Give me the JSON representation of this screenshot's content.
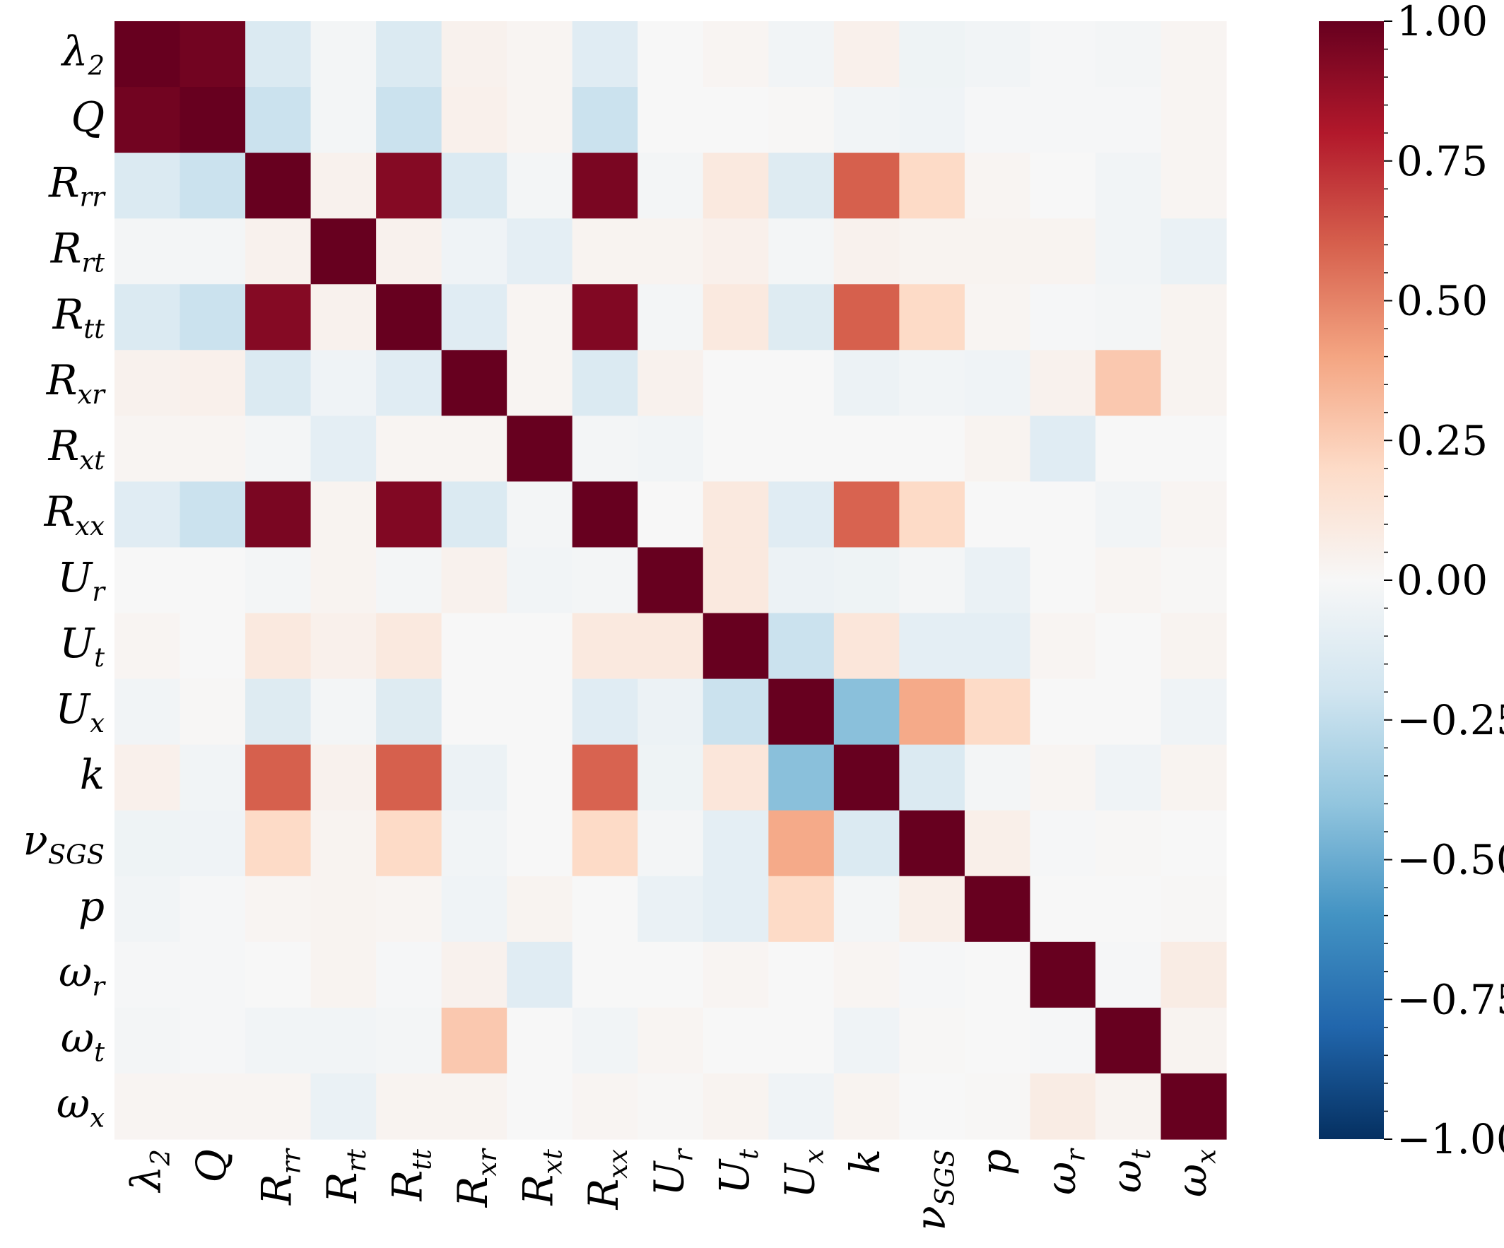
{
  "chart_data": {
    "type": "heatmap",
    "title": "",
    "xlabel": "",
    "ylabel": "",
    "variables": [
      {
        "base": "λ",
        "sub": "2"
      },
      {
        "base": "Q",
        "sub": ""
      },
      {
        "base": "R",
        "sub": "rr"
      },
      {
        "base": "R",
        "sub": "rt"
      },
      {
        "base": "R",
        "sub": "tt"
      },
      {
        "base": "R",
        "sub": "xr"
      },
      {
        "base": "R",
        "sub": "xt"
      },
      {
        "base": "R",
        "sub": "xx"
      },
      {
        "base": "U",
        "sub": "r"
      },
      {
        "base": "U",
        "sub": "t"
      },
      {
        "base": "U",
        "sub": "x"
      },
      {
        "base": "k",
        "sub": ""
      },
      {
        "base": "ν",
        "sub": "SGS"
      },
      {
        "base": "p",
        "sub": ""
      },
      {
        "base": "ω",
        "sub": "r"
      },
      {
        "base": "ω",
        "sub": "t"
      },
      {
        "base": "ω",
        "sub": "x"
      }
    ],
    "matrix": [
      [
        1.0,
        0.97,
        -0.15,
        -0.02,
        -0.15,
        0.04,
        0.02,
        -0.12,
        0.0,
        0.02,
        -0.03,
        0.05,
        -0.05,
        -0.03,
        -0.01,
        -0.02,
        0.02
      ],
      [
        0.97,
        1.0,
        -0.22,
        -0.02,
        -0.22,
        0.05,
        0.02,
        -0.22,
        0.0,
        0.0,
        0.01,
        -0.03,
        -0.04,
        -0.01,
        -0.01,
        -0.01,
        0.02
      ],
      [
        -0.15,
        -0.22,
        1.0,
        0.04,
        0.92,
        -0.15,
        -0.02,
        0.95,
        -0.02,
        0.1,
        -0.13,
        0.6,
        0.2,
        0.02,
        0.0,
        -0.03,
        0.02
      ],
      [
        -0.02,
        -0.02,
        0.04,
        1.0,
        0.04,
        -0.04,
        -0.1,
        0.03,
        0.03,
        0.05,
        -0.02,
        0.04,
        0.03,
        0.03,
        0.03,
        -0.03,
        -0.07
      ],
      [
        -0.15,
        -0.22,
        0.92,
        0.04,
        1.0,
        -0.12,
        0.02,
        0.93,
        -0.02,
        0.1,
        -0.13,
        0.6,
        0.2,
        0.02,
        -0.01,
        -0.02,
        0.03
      ],
      [
        0.04,
        0.05,
        -0.15,
        -0.04,
        -0.12,
        1.0,
        0.02,
        -0.15,
        0.04,
        0.0,
        0.0,
        -0.06,
        -0.03,
        -0.04,
        0.04,
        0.27,
        0.03
      ],
      [
        0.02,
        0.02,
        -0.02,
        -0.1,
        0.02,
        0.02,
        1.0,
        -0.02,
        -0.03,
        0.0,
        0.0,
        0.0,
        0.0,
        0.03,
        -0.12,
        0.0,
        0.0
      ],
      [
        -0.12,
        -0.22,
        0.95,
        0.03,
        0.93,
        -0.15,
        -0.02,
        1.0,
        0.0,
        0.1,
        -0.12,
        0.59,
        0.2,
        0.0,
        0.0,
        -0.03,
        0.02
      ],
      [
        0.0,
        0.0,
        -0.02,
        0.03,
        -0.02,
        0.04,
        -0.03,
        -0.02,
        1.0,
        0.1,
        -0.06,
        -0.05,
        -0.02,
        -0.07,
        0.0,
        0.02,
        0.01
      ],
      [
        0.02,
        0.0,
        0.1,
        0.05,
        0.1,
        0.0,
        0.0,
        0.1,
        0.1,
        1.0,
        -0.22,
        0.12,
        -0.1,
        -0.1,
        0.02,
        0.0,
        0.03
      ],
      [
        -0.03,
        0.01,
        -0.13,
        -0.02,
        -0.13,
        0.0,
        0.0,
        -0.12,
        -0.06,
        -0.22,
        1.0,
        -0.42,
        0.38,
        0.2,
        0.0,
        0.0,
        -0.04
      ],
      [
        0.05,
        -0.03,
        0.6,
        0.04,
        0.6,
        -0.06,
        0.0,
        0.59,
        -0.05,
        0.12,
        -0.42,
        1.0,
        -0.15,
        -0.02,
        0.02,
        -0.04,
        0.03
      ],
      [
        -0.05,
        -0.04,
        0.2,
        0.03,
        0.2,
        -0.03,
        0.0,
        0.2,
        -0.02,
        -0.1,
        0.38,
        -0.15,
        1.0,
        0.06,
        -0.01,
        0.01,
        0.0
      ],
      [
        -0.03,
        -0.01,
        0.02,
        0.03,
        0.02,
        -0.04,
        0.03,
        0.0,
        -0.07,
        -0.1,
        0.2,
        -0.02,
        0.06,
        1.0,
        0.0,
        0.0,
        0.01
      ],
      [
        -0.01,
        -0.01,
        0.0,
        0.03,
        -0.01,
        0.04,
        -0.12,
        0.0,
        0.0,
        0.02,
        0.0,
        0.02,
        -0.01,
        0.0,
        1.0,
        -0.01,
        0.08
      ],
      [
        -0.02,
        -0.01,
        -0.03,
        -0.03,
        -0.02,
        0.27,
        0.0,
        -0.03,
        0.02,
        0.0,
        0.0,
        -0.04,
        0.01,
        0.0,
        -0.01,
        1.0,
        0.03
      ],
      [
        0.02,
        0.02,
        0.02,
        -0.07,
        0.03,
        0.03,
        0.0,
        0.02,
        0.01,
        0.03,
        -0.04,
        0.03,
        0.0,
        0.01,
        0.08,
        0.03,
        1.0
      ]
    ],
    "colorbar": {
      "colormap": "RdBu_r",
      "min": -1.0,
      "max": 1.0,
      "tick_labels": [
        "1.00",
        "0.75",
        "0.50",
        "0.25",
        "0.00",
        "−0.25",
        "−0.50",
        "−0.75",
        "−1.00"
      ],
      "tick_values": [
        1.0,
        0.75,
        0.5,
        0.25,
        0.0,
        -0.25,
        -0.5,
        -0.75,
        -1.0
      ]
    },
    "colormap_stops": [
      {
        "v": -1.0,
        "color": "#053061"
      },
      {
        "v": -0.8,
        "color": "#2166ac"
      },
      {
        "v": -0.6,
        "color": "#4393c3"
      },
      {
        "v": -0.4,
        "color": "#92c5de"
      },
      {
        "v": -0.2,
        "color": "#d1e5f0"
      },
      {
        "v": 0.0,
        "color": "#f7f7f7"
      },
      {
        "v": 0.2,
        "color": "#fddbc7"
      },
      {
        "v": 0.4,
        "color": "#f4a582"
      },
      {
        "v": 0.6,
        "color": "#d6604d"
      },
      {
        "v": 0.8,
        "color": "#b2182b"
      },
      {
        "v": 1.0,
        "color": "#67001f"
      }
    ]
  }
}
